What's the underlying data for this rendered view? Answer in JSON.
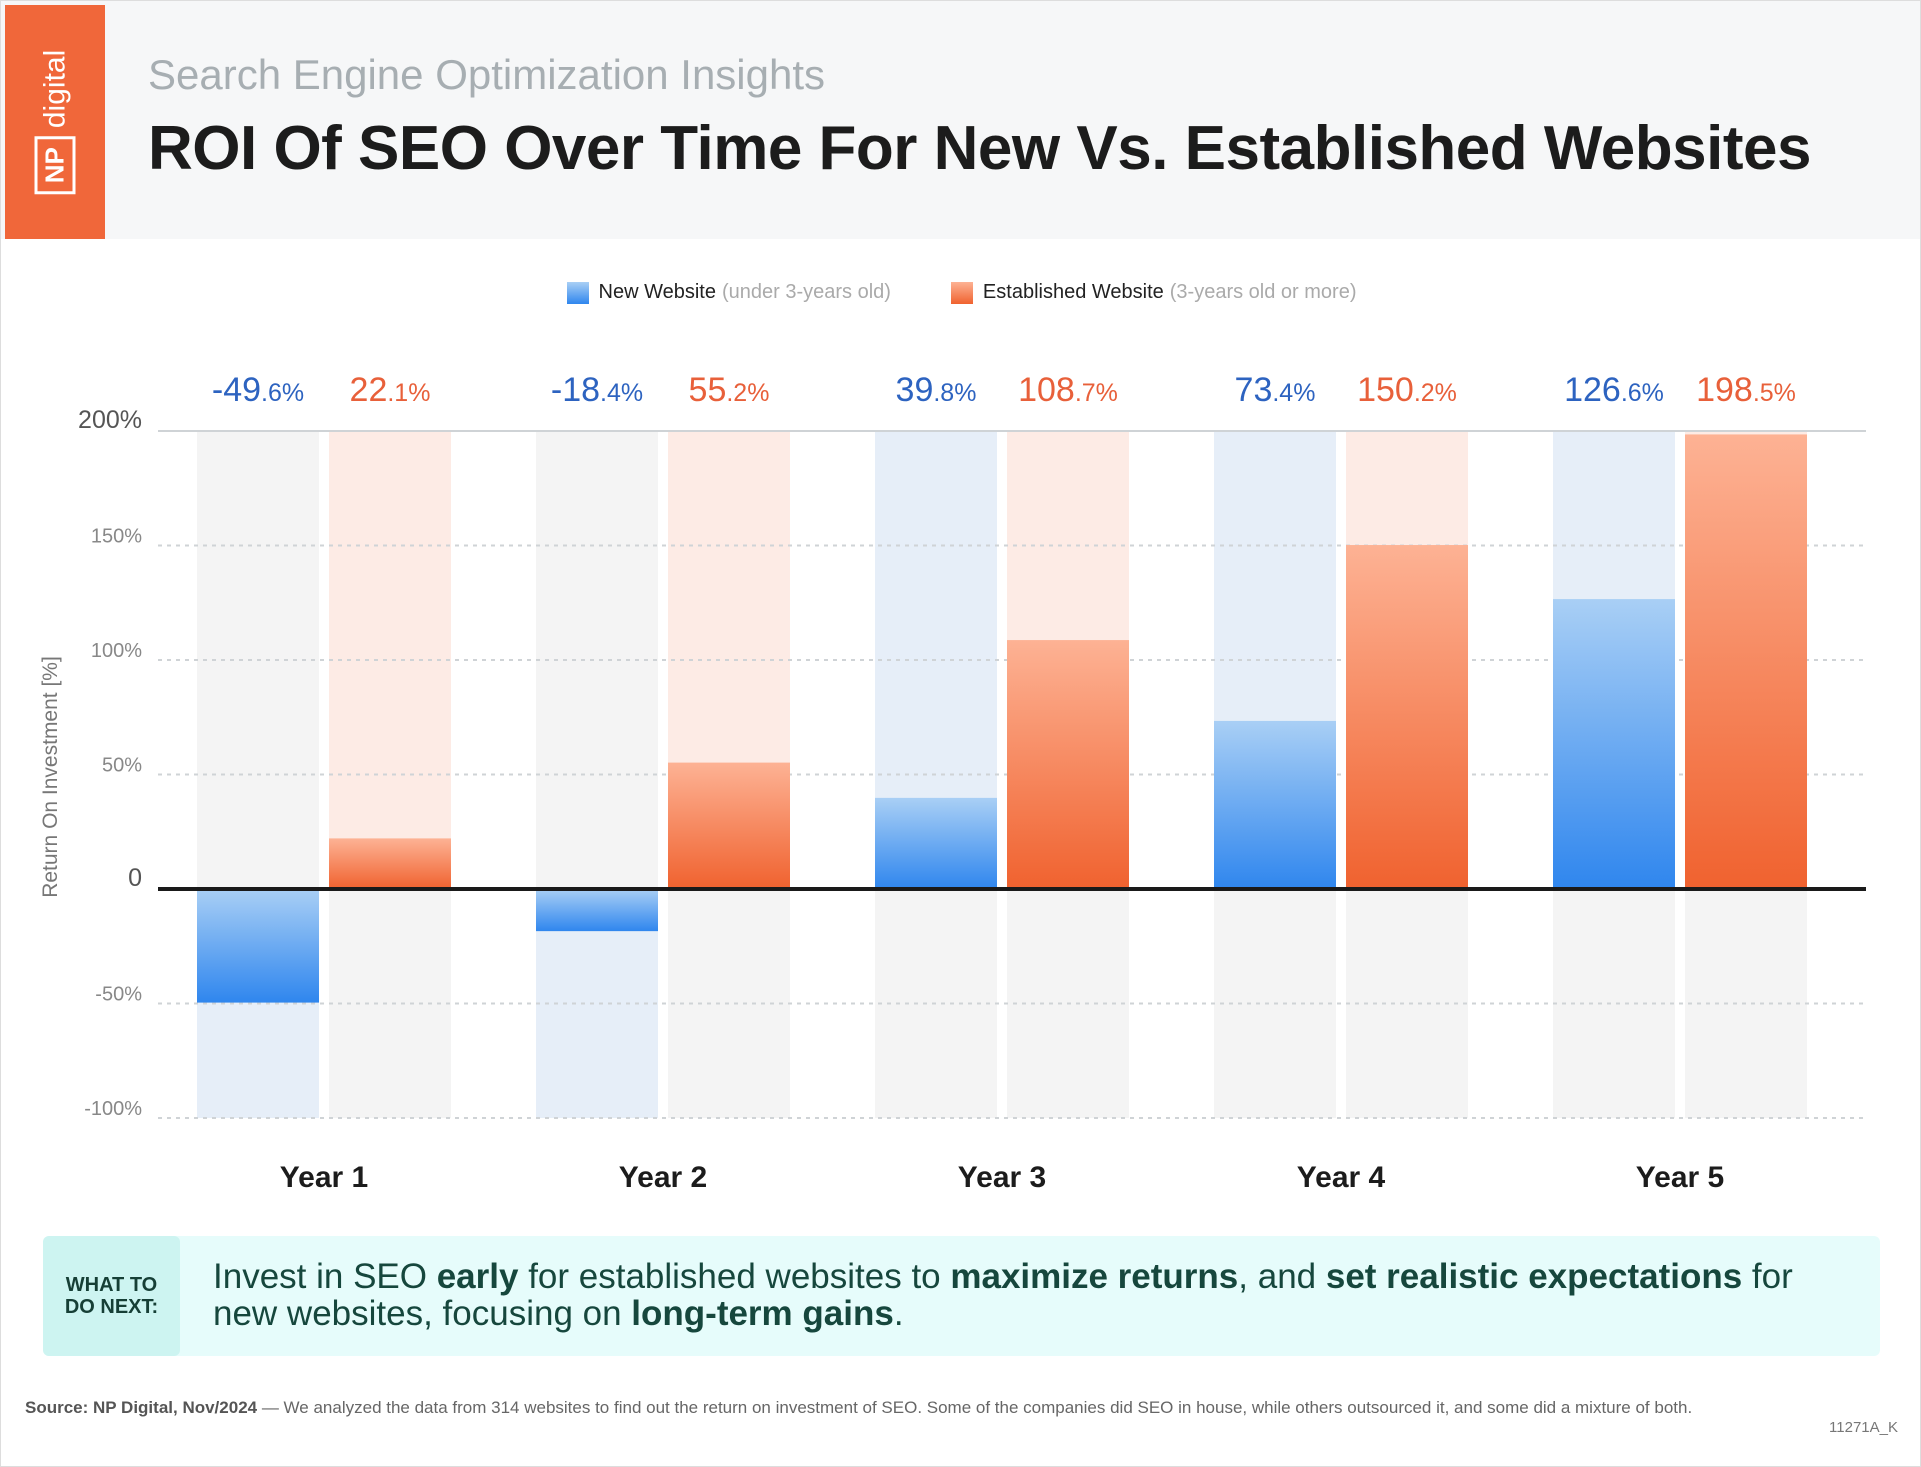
{
  "brand": {
    "logo_np": "NP",
    "logo_word": "digital",
    "color": "#f0673a"
  },
  "header": {
    "subtitle": "Search Engine Optimization Insights",
    "title": "ROI Of SEO Over Time For New Vs. Established Websites"
  },
  "chart_data": {
    "type": "bar",
    "categories": [
      "Year 1",
      "Year 2",
      "Year 3",
      "Year 4",
      "Year 5"
    ],
    "series": [
      {
        "name": "New Website",
        "note": "(under 3-years old)",
        "color": "#2f86ee",
        "label_color": "#2d63c0",
        "values": [
          -49.6,
          -18.4,
          39.8,
          73.4,
          126.6
        ],
        "labels": [
          "-49.6%",
          "-18.4%",
          "39.8%",
          "73.4%",
          "126.6%"
        ]
      },
      {
        "name": "Established Website",
        "note": "(3-years old or more)",
        "color": "#f0622f",
        "label_color": "#e8603a",
        "values": [
          22.1,
          55.2,
          108.7,
          150.2,
          198.5
        ],
        "labels": [
          "22.1%",
          "55.2%",
          "108.7%",
          "150.2%",
          "198.5%"
        ]
      }
    ],
    "ylabel": "Return On Investment [%]",
    "ylim": [
      -100,
      200
    ],
    "yticks": [
      200,
      150,
      100,
      50,
      0,
      -50,
      -100
    ],
    "ytick_labels": [
      "200%",
      "150%",
      "100%",
      "50%",
      "0",
      "-50%",
      "-100%"
    ],
    "grid": true,
    "legend": "top-center"
  },
  "callout": {
    "tag_line1": "WHAT TO",
    "tag_line2": "DO NEXT:",
    "parts": [
      {
        "t": "Invest in SEO ",
        "b": false
      },
      {
        "t": "early",
        "b": true
      },
      {
        "t": " for established websites to ",
        "b": false
      },
      {
        "t": "maximize returns",
        "b": true
      },
      {
        "t": ", and ",
        "b": false
      },
      {
        "t": "set realistic expectations",
        "b": true
      },
      {
        "t": " for new websites, focusing on ",
        "b": false
      },
      {
        "t": "long-term gains",
        "b": true
      },
      {
        "t": ".",
        "b": false
      }
    ]
  },
  "footer": {
    "source_label": "Source:  NP Digital, Nov/2024",
    "source_text": " — We analyzed the data from 314 websites to find out the return on investment of SEO. Some of the companies did SEO in house, while others outsourced it, and some did a mixture of both.",
    "code": "11271A_K"
  }
}
